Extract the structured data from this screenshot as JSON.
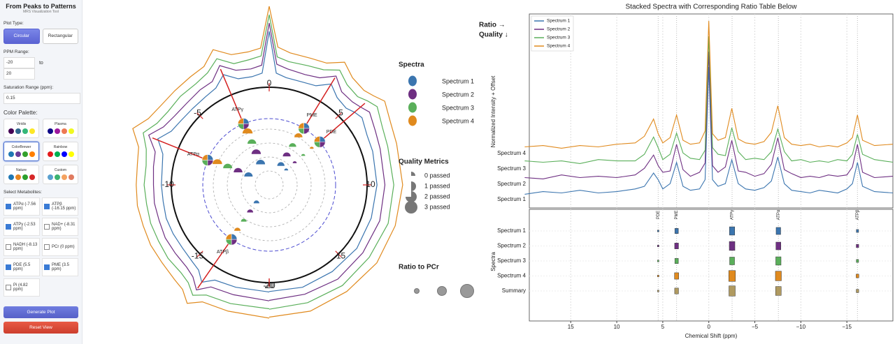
{
  "sidebar": {
    "title": "From Peaks to Patterns",
    "subtitle": "MRS Visualization Tool",
    "plot_type_label": "Plot Type:",
    "plot_types": [
      "Circular",
      "Rectangular"
    ],
    "ppm_label": "PPM Range:",
    "ppm_min": "-20",
    "ppm_to": "to",
    "ppm_max": "20",
    "saturation_label": "Saturation Range (ppm):",
    "saturation": "0.15",
    "palette_label": "Color Palette:",
    "palettes": [
      {
        "name": "Viridis",
        "colors": [
          "#440154",
          "#31688e",
          "#35b779",
          "#fde725"
        ]
      },
      {
        "name": "Plasma",
        "colors": [
          "#0d0887",
          "#9c179e",
          "#ed7953",
          "#f0f921"
        ]
      },
      {
        "name": "ColorBrewer",
        "colors": [
          "#1f78b4",
          "#6a3d9a",
          "#33a02c",
          "#ff7f00"
        ],
        "selected": true
      },
      {
        "name": "Rainbow",
        "colors": [
          "#e41a1c",
          "#00b050",
          "#0000ff",
          "#ffff00"
        ]
      },
      {
        "name": "Nature",
        "colors": [
          "#1f77b4",
          "#e6841f",
          "#2ca02c",
          "#d62728"
        ]
      },
      {
        "name": "Custom",
        "colors": [
          "#5aa0d0",
          "#3cb371",
          "#f4a261",
          "#e07a5f"
        ]
      }
    ],
    "metabolites_label": "Select Metabolites:",
    "metabolites": [
      {
        "label": "ATPα (-7.56 ppm)",
        "checked": true
      },
      {
        "label": "ATPβ (-16.15 ppm)",
        "checked": true
      },
      {
        "label": "ATPγ (-2.53 ppm)",
        "checked": true
      },
      {
        "label": "NAD+ (-8.31 ppm)",
        "checked": false
      },
      {
        "label": "NADH (-8.13 ppm)",
        "checked": false
      },
      {
        "label": "PCr (0 ppm)",
        "checked": false
      },
      {
        "label": "PDE (5.5 ppm)",
        "checked": true
      },
      {
        "label": "PME (3.5 ppm)",
        "checked": true
      },
      {
        "label": "Pi (4.82 ppm)",
        "checked": false
      }
    ],
    "generate": "Generate Plot",
    "reset": "Reset View"
  },
  "chart_data": [
    {
      "type": "polar",
      "ticks": [
        -20,
        -15,
        -10,
        -5,
        0,
        5,
        10,
        15,
        20
      ],
      "metabolites": [
        {
          "name": "PDE",
          "ppm": 5.5
        },
        {
          "name": "PME",
          "ppm": 3.5
        },
        {
          "name": "ATPγ",
          "ppm": -2.53
        },
        {
          "name": "ATPα",
          "ppm": -7.56
        },
        {
          "name": "ATPβ",
          "ppm": -16.15
        }
      ],
      "legend_title": "Spectra",
      "quality_title": "Quality Metrics",
      "quality_labels": [
        "0 passed",
        "1 passed",
        "2 passed",
        "3 passed"
      ],
      "ratio_title": "Ratio to PCr",
      "axis_label": "Ratio →",
      "axis_label2": "Quality ↓"
    },
    {
      "type": "line",
      "title": "Stacked Spectra with Corresponding Ratio Table Below",
      "ylabel": "Normalized Intensity + Offset",
      "xlabel": "Chemical Shift (ppm)",
      "xlim": [
        19.5,
        -20
      ],
      "xticks": [
        15,
        10,
        5,
        0,
        {
          "value": -5,
          "label": "−5"
        },
        {
          "value": -10,
          "label": "−10"
        },
        {
          "value": -15,
          "label": "−15"
        }
      ],
      "x": [
        20,
        18,
        16,
        14,
        12,
        10,
        8,
        7,
        6,
        5.5,
        5,
        4.2,
        3.5,
        2.8,
        2,
        1,
        0.4,
        0,
        -0.4,
        -1,
        -1.8,
        -2.5,
        -3.2,
        -4,
        -5,
        -6,
        -6.8,
        -7.5,
        -8.2,
        -9,
        -10,
        -11,
        -12,
        -13,
        -14,
        -15,
        -15.6,
        -16.15,
        -16.7,
        -18,
        -20
      ],
      "series": [
        {
          "name": "Spectrum 1",
          "color": "#3b75af",
          "values": [
            0.04,
            0.06,
            0.05,
            0.07,
            0.05,
            0.06,
            0.08,
            0.1,
            0.2,
            0.15,
            0.08,
            0.12,
            0.28,
            0.1,
            0.07,
            0.08,
            0.15,
            1.0,
            0.15,
            0.1,
            0.12,
            0.3,
            0.12,
            0.08,
            0.07,
            0.09,
            0.14,
            0.32,
            0.12,
            0.07,
            0.06,
            0.05,
            0.07,
            0.06,
            0.05,
            0.08,
            0.12,
            0.28,
            0.1,
            0.06,
            0.05
          ]
        },
        {
          "name": "Spectrum 2",
          "color": "#6e2f82",
          "values": [
            0.05,
            0.04,
            0.07,
            0.05,
            0.06,
            0.05,
            0.07,
            0.12,
            0.22,
            0.14,
            0.09,
            0.1,
            0.3,
            0.11,
            0.06,
            0.09,
            0.16,
            1.0,
            0.14,
            0.09,
            0.13,
            0.33,
            0.1,
            0.09,
            0.06,
            0.08,
            0.15,
            0.35,
            0.11,
            0.08,
            0.05,
            0.06,
            0.05,
            0.07,
            0.06,
            0.07,
            0.13,
            0.3,
            0.09,
            0.05,
            0.06
          ]
        },
        {
          "name": "Spectrum 3",
          "color": "#5aaf5a",
          "values": [
            0.06,
            0.05,
            0.06,
            0.04,
            0.07,
            0.06,
            0.06,
            0.11,
            0.24,
            0.16,
            0.07,
            0.11,
            0.27,
            0.12,
            0.08,
            0.07,
            0.14,
            1.0,
            0.16,
            0.11,
            0.1,
            0.31,
            0.13,
            0.07,
            0.08,
            0.07,
            0.13,
            0.3,
            0.13,
            0.06,
            0.07,
            0.05,
            0.06,
            0.05,
            0.07,
            0.06,
            0.11,
            0.26,
            0.11,
            0.07,
            0.05
          ]
        },
        {
          "name": "Spectrum 4",
          "color": "#e08a1e",
          "values": [
            0.05,
            0.06,
            0.04,
            0.06,
            0.05,
            0.07,
            0.08,
            0.13,
            0.26,
            0.15,
            0.08,
            0.12,
            0.29,
            0.1,
            0.07,
            0.08,
            0.17,
            1.0,
            0.15,
            0.1,
            0.12,
            0.34,
            0.11,
            0.08,
            0.07,
            0.09,
            0.16,
            0.36,
            0.12,
            0.07,
            0.06,
            0.07,
            0.05,
            0.06,
            0.05,
            0.08,
            0.12,
            0.29,
            0.1,
            0.06,
            0.07
          ]
        }
      ],
      "legend": "upper left",
      "grid": true,
      "table": {
        "ylabel": "Spectra",
        "columns": [
          {
            "name": "PDE",
            "ppm": 5.5
          },
          {
            "name": "PME",
            "ppm": 3.5
          },
          {
            "name": "ATPγ",
            "ppm": -2.53
          },
          {
            "name": "ATPα",
            "ppm": -7.56
          },
          {
            "name": "ATPβ",
            "ppm": -16.15
          }
        ],
        "rows": [
          "Spectrum 1",
          "Spectrum 2",
          "Spectrum 3",
          "Spectrum 4",
          "Summary"
        ],
        "summary_color": "#b09a60",
        "ratios": [
          [
            0.02,
            0.3,
            0.55,
            0.45,
            0.12
          ],
          [
            0.02,
            0.35,
            0.6,
            0.5,
            0.15
          ],
          [
            0.02,
            0.3,
            0.5,
            0.55,
            0.12
          ],
          [
            0.02,
            0.4,
            0.75,
            0.65,
            0.18
          ],
          [
            0.02,
            0.35,
            0.7,
            0.6,
            0.15
          ]
        ]
      }
    }
  ]
}
